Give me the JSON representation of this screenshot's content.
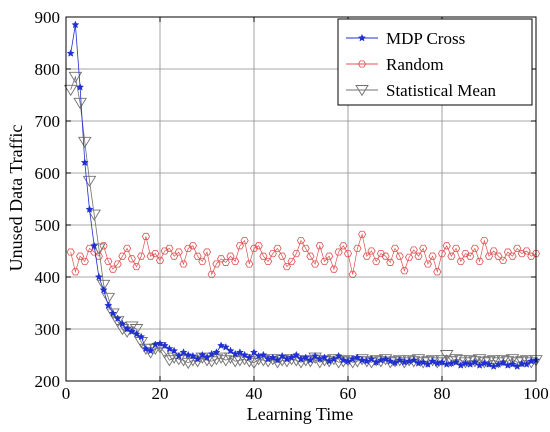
{
  "chart_data": {
    "type": "line",
    "title": "",
    "xlabel": "Learning Time",
    "ylabel": "Unused Data Traffic",
    "xlim": [
      0,
      100
    ],
    "ylim": [
      200,
      900
    ],
    "xticks": [
      0,
      20,
      40,
      60,
      80,
      100
    ],
    "yticks": [
      200,
      300,
      400,
      500,
      600,
      700,
      800,
      900
    ],
    "grid": true,
    "legend_position": "top-right",
    "series": [
      {
        "name": "MDP Cross",
        "color": "#1f2fd0",
        "marker": "star",
        "x": [
          1,
          2,
          3,
          4,
          5,
          6,
          7,
          8,
          9,
          10,
          11,
          12,
          13,
          14,
          15,
          16,
          17,
          18,
          19,
          20,
          21,
          22,
          23,
          24,
          25,
          26,
          27,
          28,
          29,
          30,
          31,
          32,
          33,
          34,
          35,
          36,
          37,
          38,
          39,
          40,
          41,
          42,
          43,
          44,
          45,
          46,
          47,
          48,
          49,
          50,
          51,
          52,
          53,
          54,
          55,
          56,
          57,
          58,
          59,
          60,
          61,
          62,
          63,
          64,
          65,
          66,
          67,
          68,
          69,
          70,
          71,
          72,
          73,
          74,
          75,
          76,
          77,
          78,
          79,
          80,
          81,
          82,
          83,
          84,
          85,
          86,
          87,
          88,
          89,
          90,
          91,
          92,
          93,
          94,
          95,
          96,
          97,
          98,
          99,
          100
        ],
        "values": [
          830,
          885,
          765,
          620,
          530,
          460,
          400,
          375,
          345,
          330,
          320,
          310,
          300,
          295,
          290,
          285,
          262,
          258,
          270,
          272,
          268,
          262,
          258,
          248,
          255,
          250,
          248,
          242,
          250,
          245,
          252,
          255,
          268,
          265,
          258,
          252,
          255,
          250,
          245,
          255,
          248,
          250,
          242,
          245,
          240,
          248,
          242,
          245,
          250,
          242,
          245,
          240,
          248,
          242,
          245,
          238,
          242,
          248,
          240,
          238,
          242,
          245,
          240,
          238,
          242,
          236,
          240,
          242,
          238,
          235,
          240,
          236,
          238,
          240,
          234,
          236,
          232,
          238,
          234,
          236,
          232,
          234,
          236,
          230,
          234,
          232,
          236,
          230,
          234,
          232,
          228,
          232,
          235,
          230,
          232,
          228,
          233,
          232,
          238,
          240
        ]
      },
      {
        "name": "Random",
        "color": "#e05050",
        "marker": "hexagon",
        "x": [
          1,
          2,
          3,
          4,
          5,
          6,
          7,
          8,
          9,
          10,
          11,
          12,
          13,
          14,
          15,
          16,
          17,
          18,
          19,
          20,
          21,
          22,
          23,
          24,
          25,
          26,
          27,
          28,
          29,
          30,
          31,
          32,
          33,
          34,
          35,
          36,
          37,
          38,
          39,
          40,
          41,
          42,
          43,
          44,
          45,
          46,
          47,
          48,
          49,
          50,
          51,
          52,
          53,
          54,
          55,
          56,
          57,
          58,
          59,
          60,
          61,
          62,
          63,
          64,
          65,
          66,
          67,
          68,
          69,
          70,
          71,
          72,
          73,
          74,
          75,
          76,
          77,
          78,
          79,
          80,
          81,
          82,
          83,
          84,
          85,
          86,
          87,
          88,
          89,
          90,
          91,
          92,
          93,
          94,
          95,
          96,
          97,
          98,
          99,
          100
        ],
        "values": [
          448,
          410,
          440,
          430,
          455,
          448,
          440,
          460,
          430,
          415,
          425,
          440,
          455,
          435,
          420,
          440,
          478,
          440,
          445,
          432,
          450,
          455,
          440,
          448,
          425,
          455,
          460,
          440,
          430,
          448,
          405,
          425,
          435,
          428,
          440,
          430,
          460,
          470,
          425,
          455,
          460,
          440,
          430,
          445,
          455,
          440,
          420,
          430,
          445,
          470,
          455,
          440,
          425,
          460,
          430,
          440,
          415,
          448,
          460,
          445,
          405,
          455,
          482,
          440,
          450,
          430,
          445,
          440,
          428,
          455,
          440,
          412,
          438,
          452,
          440,
          455,
          425,
          440,
          410,
          445,
          460,
          440,
          455,
          430,
          445,
          440,
          455,
          430,
          470,
          440,
          450,
          440,
          432,
          448,
          440,
          455,
          445,
          450,
          440,
          445
        ]
      },
      {
        "name": "Statistical Mean",
        "color": "#707070",
        "marker": "triangle-down",
        "x": [
          1,
          2,
          3,
          4,
          5,
          6,
          7,
          8,
          9,
          10,
          11,
          12,
          13,
          14,
          15,
          16,
          17,
          18,
          19,
          20,
          21,
          22,
          23,
          24,
          25,
          26,
          27,
          28,
          29,
          30,
          31,
          32,
          33,
          34,
          35,
          36,
          37,
          38,
          39,
          40,
          41,
          42,
          43,
          44,
          45,
          46,
          47,
          48,
          49,
          50,
          51,
          52,
          53,
          54,
          55,
          56,
          57,
          58,
          59,
          60,
          61,
          62,
          63,
          64,
          65,
          66,
          67,
          68,
          69,
          70,
          71,
          72,
          73,
          74,
          75,
          76,
          77,
          78,
          79,
          80,
          81,
          82,
          83,
          84,
          85,
          86,
          87,
          88,
          89,
          90,
          91,
          92,
          93,
          94,
          95,
          96,
          97,
          98,
          99,
          100
        ],
        "values": [
          760,
          785,
          735,
          660,
          585,
          520,
          455,
          385,
          360,
          330,
          315,
          300,
          295,
          305,
          300,
          275,
          262,
          255,
          262,
          265,
          255,
          240,
          245,
          242,
          240,
          235,
          240,
          238,
          245,
          240,
          238,
          242,
          245,
          240,
          245,
          238,
          240,
          242,
          238,
          235,
          242,
          240,
          238,
          242,
          236,
          240,
          238,
          242,
          240,
          236,
          240,
          238,
          245,
          236,
          240,
          238,
          242,
          236,
          238,
          240,
          236,
          238,
          242,
          238,
          236,
          240,
          238,
          242,
          236,
          238,
          240,
          236,
          240,
          238,
          242,
          236,
          238,
          240,
          236,
          240,
          250,
          238,
          242,
          240,
          236,
          240,
          238,
          242,
          236,
          238,
          240,
          236,
          240,
          238,
          242,
          236,
          238,
          240,
          236,
          240
        ]
      }
    ]
  }
}
